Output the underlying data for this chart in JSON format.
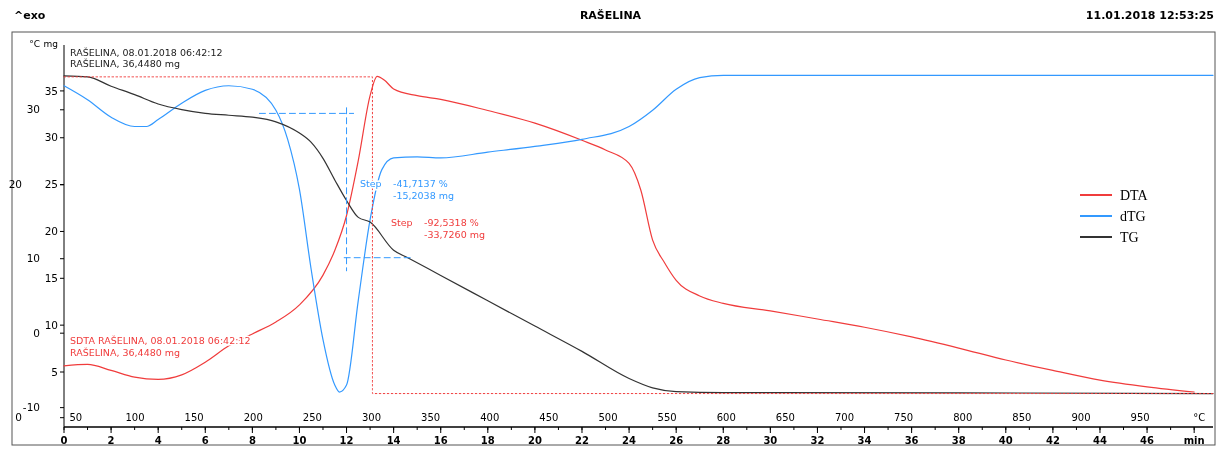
{
  "chart_data": {
    "type": "line",
    "title": "RAŠELINA",
    "annotations": [
      "^exo",
      "11.01.2018 12:53:25",
      "RAŠELINA, 08.01.2018 06:42:12",
      "RAŠELINA, 36,4480 mg",
      "SDTA RAŠELINA, 08.01.2018 06:42:12",
      "RAŠELINA, 36,4480 mg",
      "Step",
      "-41,7137 %",
      "-15,2038 mg",
      "Step",
      "-92,5318 %",
      "-33,7260 mg"
    ],
    "ylabel": "mg",
    "y2label": "°C",
    "legend": "right",
    "grid": false,
    "xlim": [
      0,
      48.8
    ],
    "xticks": [
      0,
      2,
      4,
      6,
      8,
      10,
      12,
      14,
      16,
      18,
      20,
      22,
      24,
      26,
      28,
      30,
      32,
      34,
      36,
      38,
      40,
      42,
      44,
      46,
      {
        "value": 48,
        "label": "min"
      }
    ],
    "x2lim": [
      40,
      1011.6
    ],
    "x2ticks": [
      50,
      100,
      150,
      200,
      250,
      300,
      350,
      400,
      450,
      500,
      550,
      600,
      650,
      700,
      750,
      800,
      850,
      900,
      950,
      {
        "value": 1000,
        "label": "°C"
      }
    ],
    "ylim": [
      -0.87,
      39.9
    ],
    "yticks": [
      35,
      30,
      25,
      20,
      15,
      10,
      5
    ],
    "y2lim": [
      -12.6,
      38.7
    ],
    "y2ticks": [
      30,
      10,
      0,
      -10
    ],
    "y3lim": [
      -0.8,
      32.0
    ],
    "y3ticks": [
      20,
      0
    ],
    "series": [
      {
        "name": "DTA",
        "color": "#f03c3c",
        "axis": "y2",
        "x": [
          0,
          1,
          2,
          3,
          4,
          5,
          6,
          7,
          8,
          9,
          10,
          11,
          11.5,
          12,
          12.5,
          13,
          13.3,
          13.6,
          14,
          15,
          16,
          18,
          20,
          22,
          23,
          24,
          24.5,
          25,
          25.5,
          26,
          27,
          28,
          30,
          32,
          34,
          36,
          38,
          40,
          42,
          44,
          46,
          48
        ],
        "values": [
          -4.4,
          -4.2,
          -5.0,
          -5.9,
          -6.2,
          -5.6,
          -3.9,
          -1.7,
          -0.1,
          1.5,
          3.8,
          7.8,
          11.1,
          15.8,
          23.2,
          31.9,
          34.5,
          34.0,
          32.8,
          31.9,
          31.4,
          29.9,
          28.2,
          25.9,
          24.6,
          22.8,
          19.2,
          12.5,
          9.5,
          7.1,
          5.0,
          4.0,
          3.0,
          1.9,
          0.8,
          -0.5,
          -2.0,
          -3.6,
          -5.0,
          -6.3,
          -7.2,
          -7.9
        ]
      },
      {
        "name": "dTG",
        "color": "#3399ff",
        "axis": "y3",
        "x": [
          0,
          1,
          2,
          3,
          3.5,
          4,
          5,
          6,
          7,
          8,
          9,
          9.5,
          10,
          10.5,
          11,
          11.5,
          11.7,
          12,
          12.5,
          13,
          13.5,
          14,
          15,
          16,
          18,
          20,
          22,
          24,
          25,
          26,
          27,
          28,
          30,
          48.8
        ],
        "values": [
          28.5,
          27.3,
          25.8,
          25.0,
          25.0,
          25.6,
          27.0,
          28.1,
          28.5,
          28.2,
          26.4,
          23.9,
          19.6,
          12.7,
          6.7,
          2.8,
          2.2,
          2.8,
          10.1,
          17.0,
          21.3,
          22.3,
          22.4,
          22.3,
          22.8,
          23.3,
          23.9,
          25.0,
          26.4,
          28.2,
          29.2,
          29.4,
          29.4,
          29.4
        ]
      },
      {
        "name": "TG",
        "color": "#333333",
        "x": [
          0,
          1,
          2,
          3,
          4,
          5,
          6,
          7,
          8,
          9,
          10,
          10.5,
          11,
          11.5,
          12,
          12.5,
          13,
          14,
          14.6,
          16,
          18,
          20,
          22,
          24,
          25,
          26,
          28,
          30,
          48.8
        ],
        "values": [
          36.6,
          36.5,
          35.5,
          34.6,
          33.6,
          33.0,
          32.6,
          32.4,
          32.2,
          31.7,
          30.5,
          29.5,
          27.8,
          25.5,
          23.3,
          21.5,
          21.0,
          18.0,
          17.2,
          15.3,
          12.6,
          9.9,
          7.2,
          4.3,
          3.3,
          2.9,
          2.8,
          2.8,
          2.7
        ]
      },
      {
        "color": "#3399ff",
        "line_style": "dashed",
        "x": [
          8.3,
          12.3
        ],
        "values": [
          32.6,
          32.6
        ]
      },
      {
        "color": "#3399ff",
        "line_style": "dashed",
        "x": [
          12.0,
          12.0
        ],
        "values": [
          33.2,
          15.8
        ]
      },
      {
        "color": "#3399ff",
        "line_style": "dashed",
        "x": [
          11.9,
          14.8
        ],
        "values": [
          17.2,
          17.2
        ]
      },
      {
        "color": "#f03c3c",
        "line_style": "dotted",
        "x": [
          0,
          13.1,
          13.1,
          48.8
        ],
        "values": [
          36.5,
          36.5,
          2.7,
          2.7
        ]
      }
    ]
  }
}
